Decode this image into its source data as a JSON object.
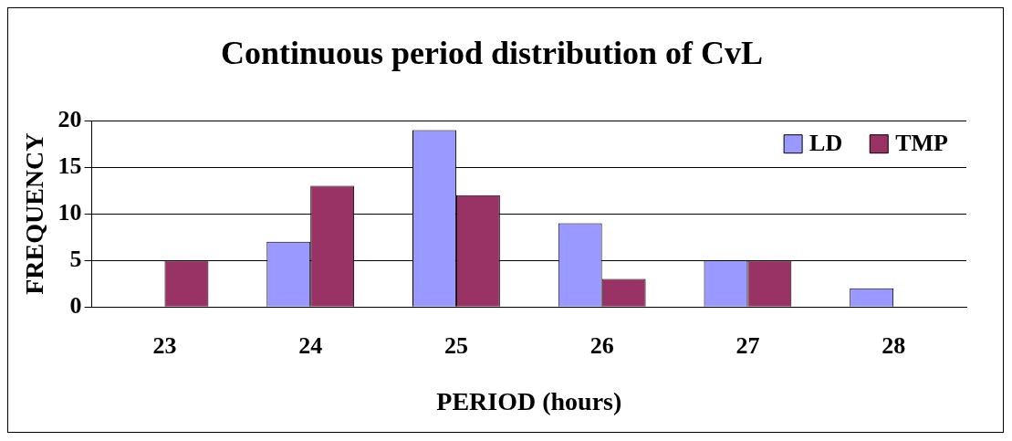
{
  "chart_data": {
    "type": "bar",
    "title": "Continuous period distribution of CvL",
    "xlabel": "PERIOD (hours)",
    "ylabel": "FREQUENCY",
    "categories": [
      "23",
      "24",
      "25",
      "26",
      "27",
      "28"
    ],
    "series": [
      {
        "name": "LD",
        "color": "#9999ff",
        "values": [
          0,
          7,
          19,
          9,
          5,
          2
        ]
      },
      {
        "name": "TMP",
        "color": "#993366",
        "values": [
          5,
          13,
          12,
          3,
          5,
          0
        ]
      }
    ],
    "ylim": [
      0,
      20
    ],
    "yticks": [
      0,
      5,
      10,
      15,
      20
    ],
    "grid": "y",
    "legend": "top right"
  }
}
